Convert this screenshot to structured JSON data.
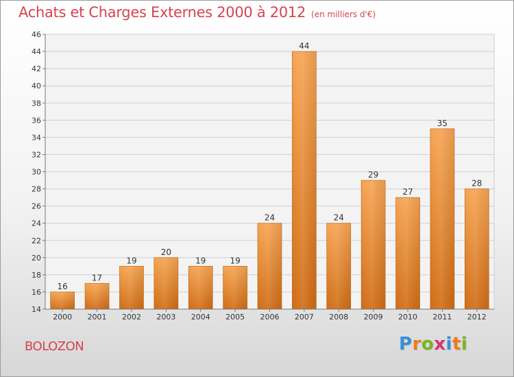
{
  "title": "Achats et Charges Externes 2000 à 2012",
  "subtitle": "(en milliers d'€)",
  "commune": "BOLOZON",
  "logo": {
    "text": "Proxiti",
    "letters": [
      "P",
      "r",
      "o",
      "x",
      "i",
      "t",
      "i"
    ],
    "colors": [
      "#3b8fd8",
      "#ee7a1b",
      "#7ab51d",
      "#d8337a",
      "#3b8fd8",
      "#ee7a1b",
      "#7ab51d"
    ]
  },
  "colors": {
    "title": "#d6434f",
    "bar_top": "#f6a452",
    "bar_bottom": "#d06c14",
    "grid": "#cfcfcf",
    "axis": "#777777"
  },
  "chart_data": {
    "type": "bar",
    "title": "Achats et Charges Externes 2000 à 2012",
    "subtitle": "(en milliers d'€)",
    "categories": [
      "2000",
      "2001",
      "2002",
      "2003",
      "2004",
      "2005",
      "2006",
      "2007",
      "2008",
      "2009",
      "2010",
      "2011",
      "2012"
    ],
    "values": [
      16,
      17,
      19,
      20,
      19,
      19,
      24,
      44,
      24,
      29,
      27,
      35,
      28
    ],
    "ylim": [
      14,
      46
    ],
    "yticks": [
      14,
      16,
      18,
      20,
      22,
      24,
      26,
      28,
      30,
      32,
      34,
      36,
      38,
      40,
      42,
      44,
      46
    ],
    "grid": true,
    "data_labels": true
  }
}
